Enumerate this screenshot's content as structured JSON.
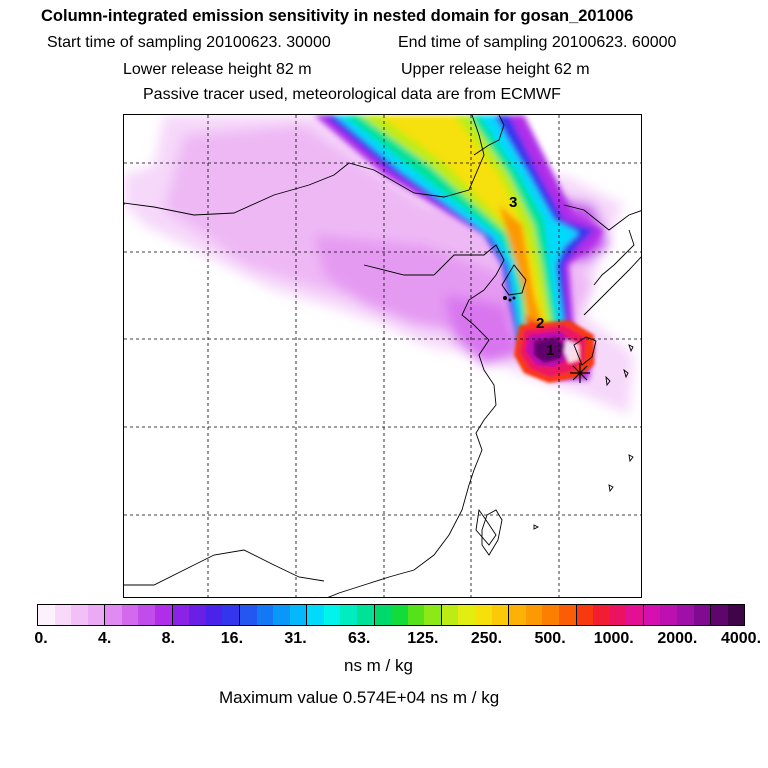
{
  "header": {
    "title": "Column-integrated emission sensitivity in nested domain for gosan_201006",
    "start": "Start time of sampling 20100623. 30000",
    "end": "End time of sampling 20100623. 60000",
    "lower": "Lower release height   82 m",
    "upper": "Upper release height   62 m",
    "tracer": "Passive tracer used, meteorological data are from ECMWF"
  },
  "map": {
    "markers": [
      "1",
      "2",
      "3"
    ],
    "receptor_icon": "star-icon"
  },
  "colorbar": {
    "colors": [
      "#fdf1fd",
      "#f8d9fa",
      "#f2c0f7",
      "#ebaaf5",
      "#e08af2",
      "#d36aee",
      "#c24bec",
      "#b02de9",
      "#8a23e6",
      "#6a1fe6",
      "#4b22ea",
      "#3436ee",
      "#2457f2",
      "#1478f5",
      "#0a98f8",
      "#05b7fb",
      "#00dafd",
      "#00f4ec",
      "#00ecc1",
      "#00e296",
      "#00da6a",
      "#12dc3b",
      "#55e21b",
      "#8de818",
      "#bdec14",
      "#e2ee10",
      "#f6e00c",
      "#fcc908",
      "#fdb104",
      "#fd9902",
      "#fd7f02",
      "#fb5c06",
      "#f8380e",
      "#f21d30",
      "#ec1262",
      "#e41093",
      "#d510b0",
      "#bc10b0",
      "#9e10a8",
      "#800a90",
      "#5e066c",
      "#400448"
    ],
    "ticks": [
      "0.",
      "4.",
      "8.",
      "16.",
      "31.",
      "63.",
      "125.",
      "250.",
      "500.",
      "1000.",
      "2000.",
      "4000."
    ],
    "unit": "ns m / kg"
  },
  "footer": {
    "max": "Maximum value  0.574E+04 ns m / kg"
  }
}
